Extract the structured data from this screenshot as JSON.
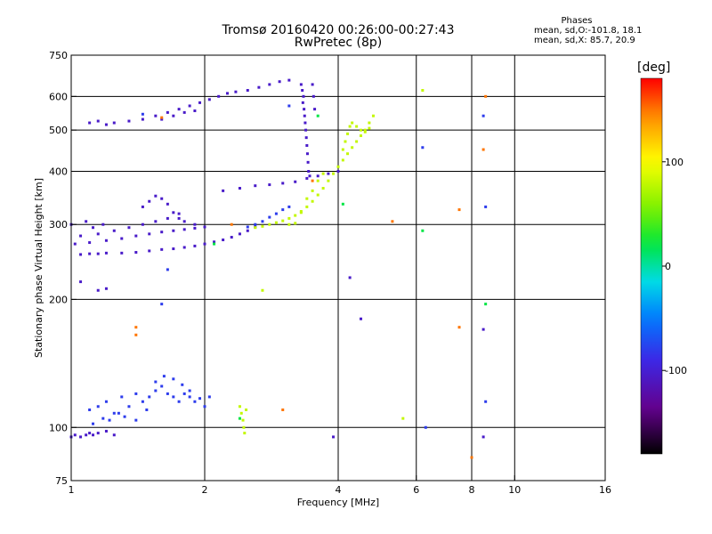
{
  "chart_data": {
    "type": "scatter",
    "title": "Tromsø 20160420 00:26:00-00:27:43",
    "subtitle": "RwPretec (8p)",
    "xlabel": "Frequency [MHz]",
    "ylabel": "Stationary phase Virtual Height [km]",
    "x_scale": "log",
    "y_scale": "log",
    "xlim": [
      1,
      16
    ],
    "ylim": [
      75,
      750
    ],
    "x_ticks": [
      1,
      2,
      4,
      6,
      8,
      10,
      16
    ],
    "y_ticks": [
      75,
      100,
      200,
      300,
      400,
      500,
      600,
      750
    ],
    "x_gridlines": [
      2,
      4,
      6,
      8,
      10
    ],
    "y_gridlines": [
      100,
      200,
      300,
      400,
      500,
      600
    ],
    "grid": true,
    "phase_stats": {
      "title": "Phases",
      "line_o": "mean, sd,O:-101.8, 18.1",
      "line_x": "mean, sd,X:  85.7, 20.9"
    },
    "colorbar": {
      "unit": "[deg]",
      "range": [
        -180,
        180
      ],
      "ticks": [
        100,
        0,
        -100
      ],
      "colormap": "rainbow (black-purple-blue-cyan-green-yellow-red)"
    },
    "series": [
      {
        "color_phase": -105,
        "points": [
          [
            1.0,
            95
          ],
          [
            1.02,
            96
          ],
          [
            1.05,
            95
          ],
          [
            1.08,
            96
          ],
          [
            1.1,
            97
          ],
          [
            1.12,
            96
          ],
          [
            1.15,
            97
          ],
          [
            1.2,
            98
          ],
          [
            1.25,
            96
          ],
          [
            1.05,
            255
          ],
          [
            1.1,
            256
          ],
          [
            1.15,
            256
          ],
          [
            1.2,
            257
          ],
          [
            1.3,
            257
          ],
          [
            1.4,
            258
          ],
          [
            1.5,
            260
          ],
          [
            1.6,
            262
          ],
          [
            1.7,
            263
          ],
          [
            1.8,
            265
          ],
          [
            1.9,
            267
          ],
          [
            2.0,
            270
          ],
          [
            2.1,
            273
          ],
          [
            2.2,
            276
          ],
          [
            2.3,
            280
          ],
          [
            2.4,
            285
          ],
          [
            2.5,
            290
          ],
          [
            2.6,
            296
          ],
          [
            1.02,
            270
          ],
          [
            1.1,
            272
          ],
          [
            1.2,
            275
          ],
          [
            1.3,
            278
          ],
          [
            1.4,
            282
          ],
          [
            1.5,
            285
          ],
          [
            1.6,
            288
          ],
          [
            1.7,
            290
          ],
          [
            1.8,
            292
          ],
          [
            1.9,
            294
          ],
          [
            2.0,
            296
          ],
          [
            1.05,
            282
          ],
          [
            1.15,
            285
          ],
          [
            1.25,
            290
          ],
          [
            1.35,
            295
          ],
          [
            1.45,
            300
          ],
          [
            1.55,
            305
          ],
          [
            1.65,
            310
          ],
          [
            1.75,
            318
          ],
          [
            1.0,
            300
          ],
          [
            1.08,
            305
          ],
          [
            1.12,
            295
          ],
          [
            1.18,
            300
          ],
          [
            1.25,
            520
          ],
          [
            1.35,
            525
          ],
          [
            1.45,
            530
          ],
          [
            1.55,
            540
          ],
          [
            1.65,
            550
          ],
          [
            1.75,
            560
          ],
          [
            1.85,
            570
          ],
          [
            1.95,
            580
          ],
          [
            2.05,
            590
          ],
          [
            2.15,
            600
          ],
          [
            2.25,
            610
          ],
          [
            2.35,
            615
          ],
          [
            2.5,
            620
          ],
          [
            2.65,
            630
          ],
          [
            2.8,
            640
          ],
          [
            2.95,
            650
          ],
          [
            3.1,
            655
          ],
          [
            1.1,
            520
          ],
          [
            1.15,
            525
          ],
          [
            1.2,
            515
          ],
          [
            1.6,
            530
          ],
          [
            1.7,
            540
          ],
          [
            1.8,
            550
          ],
          [
            1.9,
            555
          ],
          [
            3.3,
            640
          ],
          [
            3.32,
            620
          ],
          [
            3.34,
            600
          ],
          [
            3.33,
            580
          ],
          [
            3.35,
            560
          ],
          [
            3.36,
            540
          ],
          [
            3.37,
            520
          ],
          [
            3.38,
            500
          ],
          [
            3.39,
            480
          ],
          [
            3.4,
            460
          ],
          [
            3.41,
            440
          ],
          [
            3.42,
            420
          ],
          [
            3.43,
            400
          ],
          [
            3.45,
            390
          ],
          [
            3.5,
            640
          ],
          [
            3.52,
            600
          ],
          [
            3.54,
            560
          ],
          [
            2.2,
            360
          ],
          [
            2.4,
            365
          ],
          [
            2.6,
            370
          ],
          [
            2.8,
            372
          ],
          [
            3.0,
            375
          ],
          [
            3.2,
            378
          ],
          [
            3.4,
            385
          ],
          [
            3.6,
            390
          ],
          [
            3.8,
            395
          ],
          [
            4.0,
            400
          ],
          [
            1.45,
            330
          ],
          [
            1.5,
            340
          ],
          [
            1.55,
            350
          ],
          [
            1.6,
            345
          ],
          [
            1.65,
            335
          ],
          [
            1.7,
            320
          ],
          [
            1.75,
            310
          ],
          [
            1.8,
            305
          ],
          [
            1.9,
            300
          ],
          [
            1.15,
            210
          ],
          [
            1.2,
            212
          ],
          [
            1.05,
            220
          ],
          [
            4.25,
            225
          ],
          [
            4.5,
            180
          ],
          [
            8.5,
            170
          ],
          [
            8.5,
            95
          ],
          [
            3.9,
            95
          ]
        ]
      },
      {
        "color_phase": -80,
        "points": [
          [
            1.1,
            110
          ],
          [
            1.15,
            112
          ],
          [
            1.2,
            115
          ],
          [
            1.25,
            108
          ],
          [
            1.3,
            118
          ],
          [
            1.35,
            112
          ],
          [
            1.4,
            120
          ],
          [
            1.45,
            115
          ],
          [
            1.5,
            118
          ],
          [
            1.55,
            122
          ],
          [
            1.6,
            125
          ],
          [
            1.65,
            120
          ],
          [
            1.7,
            118
          ],
          [
            1.75,
            115
          ],
          [
            1.8,
            120
          ],
          [
            1.85,
            118
          ],
          [
            1.9,
            115
          ],
          [
            1.95,
            117
          ],
          [
            2.0,
            112
          ],
          [
            2.05,
            118
          ],
          [
            1.12,
            102
          ],
          [
            1.18,
            105
          ],
          [
            1.22,
            104
          ],
          [
            1.28,
            108
          ],
          [
            1.32,
            106
          ],
          [
            1.4,
            104
          ],
          [
            1.48,
            110
          ],
          [
            1.55,
            128
          ],
          [
            1.62,
            132
          ],
          [
            1.7,
            130
          ],
          [
            1.78,
            126
          ],
          [
            1.85,
            122
          ],
          [
            2.5,
            296
          ],
          [
            2.6,
            300
          ],
          [
            2.7,
            305
          ],
          [
            2.8,
            312
          ],
          [
            2.9,
            318
          ],
          [
            3.0,
            325
          ],
          [
            3.1,
            330
          ],
          [
            1.65,
            235
          ],
          [
            6.2,
            455
          ],
          [
            6.3,
            100
          ],
          [
            8.6,
            330
          ],
          [
            8.6,
            115
          ],
          [
            8.5,
            540
          ],
          [
            1.6,
            195
          ],
          [
            1.45,
            545
          ],
          [
            3.1,
            570
          ]
        ]
      },
      {
        "color_phase": 80,
        "points": [
          [
            2.6,
            295
          ],
          [
            2.7,
            297
          ],
          [
            2.8,
            300
          ],
          [
            2.9,
            303
          ],
          [
            3.0,
            306
          ],
          [
            3.1,
            310
          ],
          [
            3.2,
            315
          ],
          [
            3.3,
            322
          ],
          [
            3.4,
            330
          ],
          [
            3.5,
            340
          ],
          [
            3.6,
            352
          ],
          [
            3.7,
            365
          ],
          [
            3.8,
            380
          ],
          [
            3.9,
            395
          ],
          [
            4.0,
            410
          ],
          [
            4.1,
            425
          ],
          [
            4.2,
            440
          ],
          [
            4.3,
            455
          ],
          [
            4.4,
            470
          ],
          [
            4.5,
            485
          ],
          [
            4.6,
            500
          ],
          [
            4.7,
            520
          ],
          [
            4.8,
            540
          ],
          [
            4.1,
            450
          ],
          [
            4.15,
            470
          ],
          [
            4.2,
            490
          ],
          [
            4.25,
            510
          ],
          [
            4.3,
            520
          ],
          [
            4.4,
            510
          ],
          [
            4.5,
            500
          ],
          [
            4.6,
            495
          ],
          [
            4.7,
            505
          ],
          [
            2.4,
            112
          ],
          [
            2.42,
            108
          ],
          [
            2.44,
            104
          ],
          [
            2.45,
            100
          ],
          [
            2.46,
            97
          ],
          [
            2.48,
            110
          ],
          [
            3.1,
            300
          ],
          [
            3.2,
            302
          ],
          [
            3.3,
            320
          ],
          [
            3.4,
            345
          ],
          [
            3.5,
            360
          ],
          [
            3.6,
            380
          ],
          [
            3.7,
            395
          ],
          [
            6.2,
            620
          ],
          [
            5.6,
            105
          ],
          [
            2.7,
            210
          ]
        ]
      },
      {
        "color_phase": 150,
        "points": [
          [
            1.4,
            165
          ],
          [
            1.4,
            172
          ],
          [
            1.6,
            535
          ],
          [
            3.5,
            380
          ],
          [
            5.3,
            305
          ],
          [
            7.5,
            172
          ],
          [
            7.5,
            325
          ],
          [
            8.0,
            85
          ],
          [
            8.5,
            450
          ],
          [
            8.6,
            600
          ],
          [
            3.0,
            110
          ],
          [
            2.3,
            300
          ]
        ]
      },
      {
        "color_phase": 20,
        "points": [
          [
            2.4,
            105
          ],
          [
            3.6,
            540
          ],
          [
            8.6,
            195
          ],
          [
            6.2,
            290
          ],
          [
            4.1,
            335
          ],
          [
            2.1,
            270
          ]
        ]
      }
    ]
  }
}
